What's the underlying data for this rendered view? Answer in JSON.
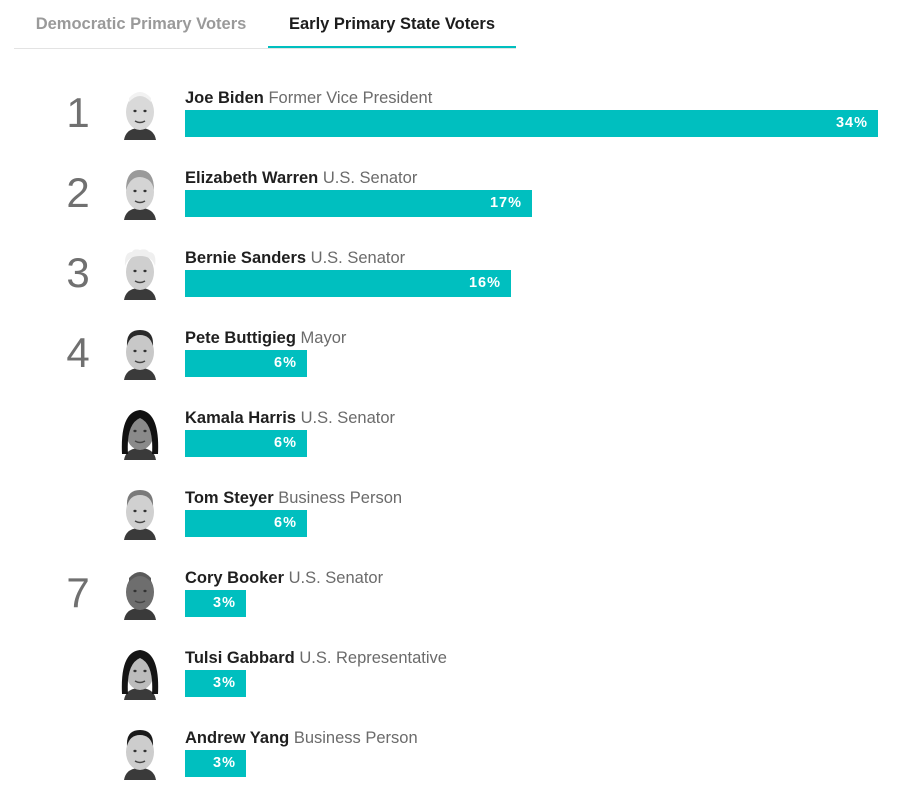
{
  "tabs": [
    {
      "label": "Democratic Primary Voters",
      "active": false
    },
    {
      "label": "Early Primary State Voters",
      "active": true
    }
  ],
  "colors": {
    "bar": "#00bfbf",
    "rank": "#707070",
    "title": "#6b6b6b",
    "tab_inactive": "#9a9a9a",
    "tab_underline": "#00bfbf"
  },
  "chart_data": {
    "type": "bar",
    "orientation": "horizontal",
    "value_suffix": "%",
    "categories": [
      "Joe Biden",
      "Elizabeth Warren",
      "Bernie Sanders",
      "Pete Buttigieg",
      "Kamala Harris",
      "Tom Steyer",
      "Cory Booker",
      "Tulsi Gabbard",
      "Andrew Yang"
    ],
    "values": [
      34,
      17,
      16,
      6,
      6,
      6,
      3,
      3,
      3
    ],
    "xlim": [
      0,
      34
    ],
    "grid": false,
    "legend": "none"
  },
  "candidates": [
    {
      "rank": "1",
      "name": "Joe Biden",
      "title": "Former Vice President",
      "value": 34,
      "label": "34%",
      "icon": "joe-biden-headshot-icon"
    },
    {
      "rank": "2",
      "name": "Elizabeth Warren",
      "title": "U.S. Senator",
      "value": 17,
      "label": "17%",
      "icon": "elizabeth-warren-headshot-icon"
    },
    {
      "rank": "3",
      "name": "Bernie Sanders",
      "title": "U.S. Senator",
      "value": 16,
      "label": "16%",
      "icon": "bernie-sanders-headshot-icon"
    },
    {
      "rank": "4",
      "name": "Pete Buttigieg",
      "title": "Mayor",
      "value": 6,
      "label": "6%",
      "icon": "pete-buttigieg-headshot-icon"
    },
    {
      "rank": "",
      "name": "Kamala Harris",
      "title": "U.S. Senator",
      "value": 6,
      "label": "6%",
      "icon": "kamala-harris-headshot-icon"
    },
    {
      "rank": "",
      "name": "Tom Steyer",
      "title": "Business Person",
      "value": 6,
      "label": "6%",
      "icon": "tom-steyer-headshot-icon"
    },
    {
      "rank": "7",
      "name": "Cory Booker",
      "title": "U.S. Senator",
      "value": 3,
      "label": "3%",
      "icon": "cory-booker-headshot-icon"
    },
    {
      "rank": "",
      "name": "Tulsi Gabbard",
      "title": "U.S. Representative",
      "value": 3,
      "label": "3%",
      "icon": "tulsi-gabbard-headshot-icon"
    },
    {
      "rank": "",
      "name": "Andrew Yang",
      "title": "Business Person",
      "value": 3,
      "label": "3%",
      "icon": "andrew-yang-headshot-icon"
    }
  ]
}
